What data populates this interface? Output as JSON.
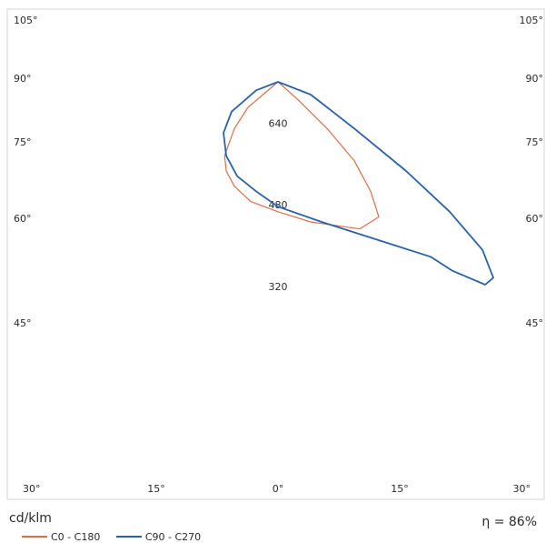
{
  "chart_data": {
    "type": "line",
    "unit": "cd/klm",
    "efficiency": "η = 86%",
    "radial_labels": [
      "320",
      "480",
      "640"
    ],
    "radial_values": [
      320,
      480,
      640
    ],
    "angle_labels": [
      {
        "side": "left",
        "value": 105,
        "text": "105°"
      },
      {
        "side": "left",
        "value": 90,
        "text": "90°"
      },
      {
        "side": "left",
        "value": 75,
        "text": "75°"
      },
      {
        "side": "left",
        "value": 60,
        "text": "60°"
      },
      {
        "side": "left",
        "value": 45,
        "text": "45°"
      },
      {
        "side": "right",
        "value": 105,
        "text": "105°"
      },
      {
        "side": "right",
        "value": 90,
        "text": "90°"
      },
      {
        "side": "right",
        "value": 75,
        "text": "75°"
      },
      {
        "side": "right",
        "value": 60,
        "text": "60°"
      },
      {
        "side": "right",
        "value": 45,
        "text": "45°"
      }
    ],
    "bottom_angle_labels": [
      {
        "value": -30,
        "text": "30°"
      },
      {
        "value": -15,
        "text": "15°"
      },
      {
        "value": 0,
        "text": "0°"
      },
      {
        "value": 15,
        "text": "15°"
      },
      {
        "value": 30,
        "text": "30°"
      }
    ],
    "series": [
      {
        "name": "C0 - C180",
        "color": "#d8704a",
        "points": [
          [
            0,
            90
          ],
          [
            -55,
            84
          ],
          [
            -80,
            79
          ],
          [
            -98,
            73
          ],
          [
            -95,
            70
          ],
          [
            -80,
            67
          ],
          [
            -50,
            64
          ],
          [
            0,
            62
          ],
          [
            60,
            60
          ],
          [
            150,
            59
          ],
          [
            185,
            61
          ],
          [
            170,
            66
          ],
          [
            140,
            72
          ],
          [
            90,
            79
          ],
          [
            35,
            86
          ],
          [
            0,
            90
          ]
        ]
      },
      {
        "name": "C90 - C270",
        "color": "#2a62a8",
        "points": [
          [
            0,
            90
          ],
          [
            -40,
            88
          ],
          [
            -85,
            83
          ],
          [
            -100,
            78
          ],
          [
            -95,
            73
          ],
          [
            -75,
            69
          ],
          [
            -40,
            66
          ],
          [
            0,
            63
          ],
          [
            80,
            60
          ],
          [
            200,
            57
          ],
          [
            280,
            55
          ],
          [
            320,
            53
          ],
          [
            350,
            52
          ],
          [
            380,
            51
          ],
          [
            395,
            52
          ],
          [
            375,
            56
          ],
          [
            315,
            62
          ],
          [
            235,
            70
          ],
          [
            140,
            79
          ],
          [
            60,
            87
          ],
          [
            0,
            90
          ]
        ]
      }
    ]
  }
}
